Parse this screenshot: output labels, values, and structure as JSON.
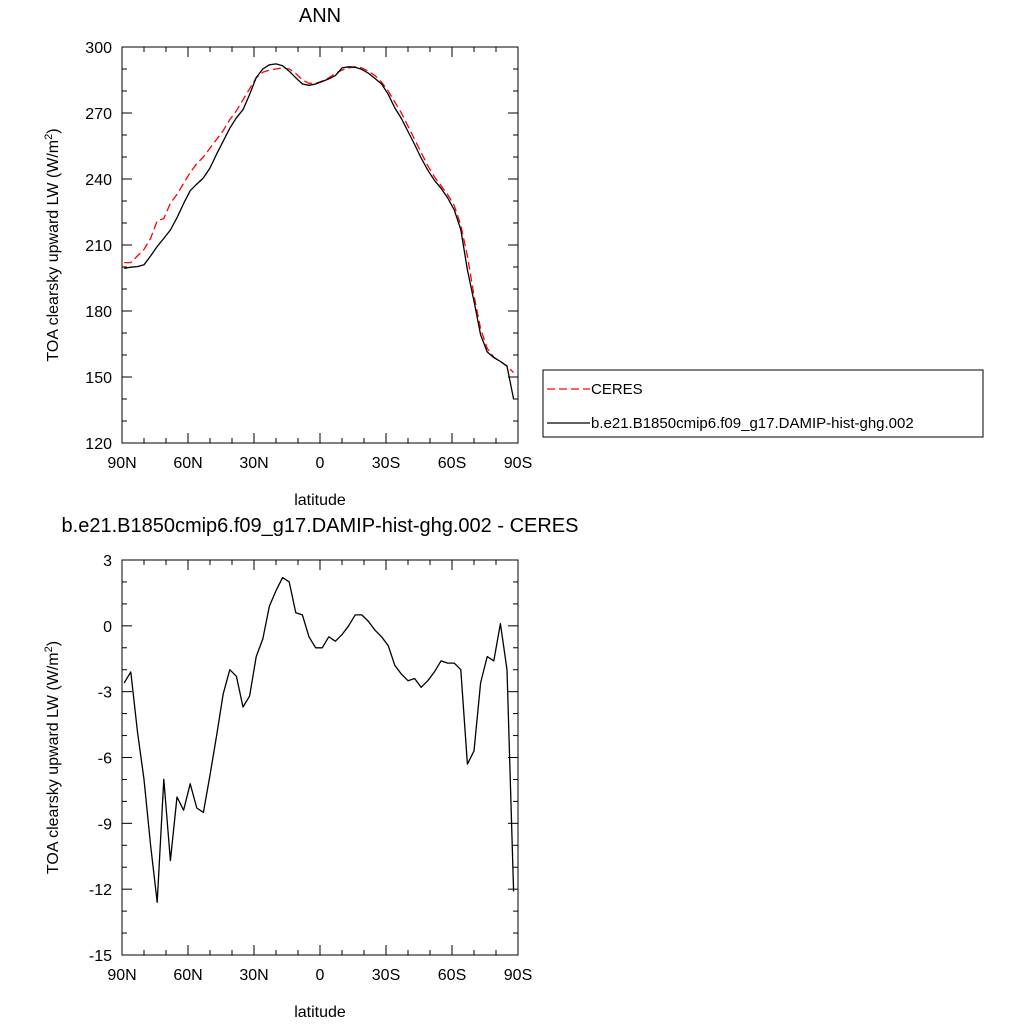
{
  "chart_data": [
    {
      "type": "line",
      "title": "ANN",
      "xlabel": "latitude",
      "ylabel": "TOA clearsky upward LW (W/m",
      "ylabel_sup": "2",
      "ylabel_close": ")",
      "xlim": [
        90,
        -90
      ],
      "ylim": [
        120,
        300
      ],
      "xticks": [
        {
          "value": 90,
          "label": "90N"
        },
        {
          "value": 60,
          "label": "60N"
        },
        {
          "value": 30,
          "label": "30N"
        },
        {
          "value": 0,
          "label": "0"
        },
        {
          "value": -30,
          "label": "30S"
        },
        {
          "value": -60,
          "label": "60S"
        },
        {
          "value": -90,
          "label": "90S"
        }
      ],
      "yticks": [
        {
          "value": 120,
          "label": "120"
        },
        {
          "value": 150,
          "label": "150"
        },
        {
          "value": 180,
          "label": "180"
        },
        {
          "value": 210,
          "label": "210"
        },
        {
          "value": 240,
          "label": "240"
        },
        {
          "value": 270,
          "label": "270"
        },
        {
          "value": 300,
          "label": "300"
        }
      ],
      "legend_position": "right",
      "series": [
        {
          "name": "CERES",
          "color": "#ff0000",
          "dash": true,
          "x": [
            89,
            86,
            83,
            80,
            77,
            74,
            71,
            68,
            65,
            62,
            59,
            56,
            53,
            50,
            47,
            44,
            41,
            38,
            35,
            32,
            29,
            26,
            23,
            20,
            17,
            14,
            11,
            8,
            5,
            2,
            -1,
            -4,
            -7,
            -10,
            -13,
            -16,
            -19,
            -22,
            -25,
            -28,
            -31,
            -34,
            -37,
            -40,
            -43,
            -46,
            -49,
            -52,
            -55,
            -58,
            -61,
            -64,
            -67,
            -70,
            -73,
            -76,
            -79,
            -82,
            -85,
            -88
          ],
          "y": [
            202,
            202,
            205,
            208,
            213,
            221,
            222,
            229,
            233,
            238,
            243,
            247,
            250,
            254,
            258,
            262,
            267,
            271,
            276,
            281,
            286,
            288.5,
            289.5,
            290,
            290.5,
            290,
            288,
            285,
            283.5,
            283.5,
            284.5,
            286,
            288,
            289.5,
            290.5,
            291,
            290.5,
            289,
            287,
            284,
            280,
            275,
            270,
            264,
            258,
            252,
            246,
            241,
            237,
            233,
            228,
            219,
            205,
            187,
            172,
            163,
            159,
            157,
            155,
            152
          ]
        },
        {
          "name": "b.e21.B1850cmip6.f09_g17.DAMIP-hist-ghg.002",
          "color": "#000000",
          "dash": false,
          "x": [
            89,
            86,
            83,
            80,
            77,
            74,
            71,
            68,
            65,
            62,
            59,
            56,
            53,
            50,
            47,
            44,
            41,
            38,
            35,
            32,
            29,
            26,
            23,
            20,
            17,
            14,
            11,
            8,
            5,
            2,
            -1,
            -4,
            -7,
            -10,
            -13,
            -16,
            -19,
            -22,
            -25,
            -28,
            -31,
            -34,
            -37,
            -40,
            -43,
            -46,
            -49,
            -52,
            -55,
            -58,
            -61,
            -64,
            -67,
            -70,
            -73,
            -76,
            -79,
            -82,
            -85,
            -88
          ],
          "y": [
            199.4,
            199.9,
            200.2,
            201.0,
            205.0,
            209.3,
            213.0,
            216.8,
            222.4,
            228.8,
            234.7,
            237.7,
            240.5,
            245.0,
            251.3,
            257.2,
            263.1,
            267.8,
            271.5,
            278.4,
            286.1,
            290.0,
            291.9,
            292.3,
            291.5,
            289.0,
            286.0,
            283.2,
            282.6,
            283.2,
            284.3,
            285.5,
            287.0,
            290.5,
            291.0,
            290.8,
            289.8,
            288.1,
            285.7,
            283.2,
            278.5,
            272.3,
            267.5,
            261.6,
            255.7,
            249.5,
            244.0,
            239.4,
            235.8,
            231.5,
            226.0,
            217.0,
            198.7,
            184.4,
            169.2,
            161.4,
            158.8,
            157.1,
            154.9,
            140.0
          ]
        }
      ]
    },
    {
      "type": "line",
      "title": "b.e21.B1850cmip6.f09_g17.DAMIP-hist-ghg.002 - CERES",
      "xlabel": "latitude",
      "ylabel": "TOA clearsky upward LW (W/m",
      "ylabel_sup": "2",
      "ylabel_close": ")",
      "xlim": [
        90,
        -90
      ],
      "ylim": [
        -15,
        3
      ],
      "xticks": [
        {
          "value": 90,
          "label": "90N"
        },
        {
          "value": 60,
          "label": "60N"
        },
        {
          "value": 30,
          "label": "30N"
        },
        {
          "value": 0,
          "label": "0"
        },
        {
          "value": -30,
          "label": "30S"
        },
        {
          "value": -60,
          "label": "60S"
        },
        {
          "value": -90,
          "label": "90S"
        }
      ],
      "yticks": [
        {
          "value": -15,
          "label": "-15"
        },
        {
          "value": -12,
          "label": "-12"
        },
        {
          "value": -9,
          "label": "-9"
        },
        {
          "value": -6,
          "label": "-6"
        },
        {
          "value": -3,
          "label": "-3"
        },
        {
          "value": 0,
          "label": "0"
        },
        {
          "value": 3,
          "label": "3"
        }
      ],
      "series": [
        {
          "color": "#000000",
          "dash": false,
          "x": [
            89,
            86,
            83,
            80,
            77,
            74,
            71,
            68,
            65,
            62,
            59,
            56,
            53,
            50,
            47,
            44,
            41,
            38,
            35,
            32,
            29,
            26,
            23,
            20,
            17,
            14,
            11,
            8,
            5,
            2,
            -1,
            -4,
            -7,
            -10,
            -13,
            -16,
            -19,
            -22,
            -25,
            -28,
            -31,
            -34,
            -37,
            -40,
            -43,
            -46,
            -49,
            -52,
            -55,
            -58,
            -61,
            -64,
            -67,
            -70,
            -73,
            -76,
            -79,
            -82,
            -85,
            -88
          ],
          "y": [
            -2.6,
            -2.1,
            -4.8,
            -7.0,
            -10.0,
            -12.6,
            -7.0,
            -10.7,
            -7.8,
            -8.4,
            -7.2,
            -8.3,
            -8.5,
            -6.8,
            -5.0,
            -3.1,
            -2.0,
            -2.3,
            -3.7,
            -3.2,
            -1.4,
            -0.6,
            0.9,
            1.6,
            2.2,
            2.0,
            0.6,
            0.5,
            -0.5,
            -1.0,
            -1.0,
            -0.5,
            -0.7,
            -0.4,
            0.0,
            0.5,
            0.5,
            0.2,
            -0.2,
            -0.5,
            -0.9,
            -1.8,
            -2.2,
            -2.5,
            -2.4,
            -2.8,
            -2.5,
            -2.1,
            -1.6,
            -1.7,
            -1.7,
            -2.0,
            -6.3,
            -5.7,
            -2.6,
            -1.4,
            -1.6,
            0.1,
            -2.0,
            -12.1
          ]
        }
      ]
    }
  ]
}
